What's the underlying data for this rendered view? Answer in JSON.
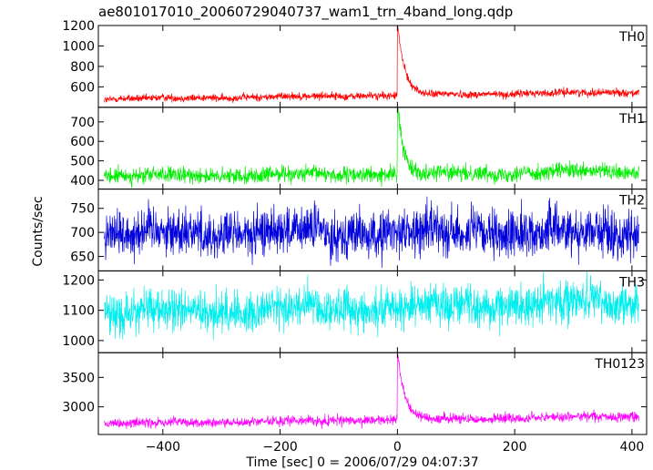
{
  "chart_data": {
    "type": "line",
    "title": "ae801017010_20060729040737_wam1_trn_4band_long.qdp",
    "xlabel": "Time [sec] 0 = 2006/07/29 04:07:37",
    "ylabel": "Counts/sec",
    "xlim": [
      -510,
      425
    ],
    "xticks": [
      -400,
      -200,
      0,
      200,
      400
    ],
    "grid": false,
    "panels": [
      {
        "name": "TH0",
        "color": "#ff0000",
        "ylim": [
          400,
          1200
        ],
        "yticks": [
          600,
          800,
          1000,
          1200
        ],
        "baseline_start": 480,
        "baseline_end": 550,
        "noise": 20,
        "peak": 1200,
        "spike_decay": 12
      },
      {
        "name": "TH1",
        "color": "#00ee00",
        "ylim": [
          355,
          775
        ],
        "yticks": [
          400,
          500,
          600,
          700
        ],
        "baseline_start": 420,
        "baseline_end": 445,
        "noise": 22,
        "peak": 775,
        "spike_decay": 10
      },
      {
        "name": "TH2",
        "color": "#0000dd",
        "ylim": [
          620,
          790
        ],
        "yticks": [
          650,
          700,
          750
        ],
        "baseline_start": 700,
        "baseline_end": 700,
        "noise": 26,
        "peak": null,
        "spike_decay": 0
      },
      {
        "name": "TH3",
        "color": "#00eeee",
        "ylim": [
          960,
          1230
        ],
        "yticks": [
          1000,
          1100,
          1200
        ],
        "baseline_start": 1090,
        "baseline_end": 1130,
        "noise": 36,
        "peak": null,
        "spike_decay": 0
      },
      {
        "name": "TH0123",
        "color": "#ff00ff",
        "ylim": [
          2530,
          3920
        ],
        "yticks": [
          3000,
          3500
        ],
        "baseline_start": 2710,
        "baseline_end": 2840,
        "noise": 45,
        "peak": 3920,
        "spike_decay": 12
      }
    ]
  }
}
